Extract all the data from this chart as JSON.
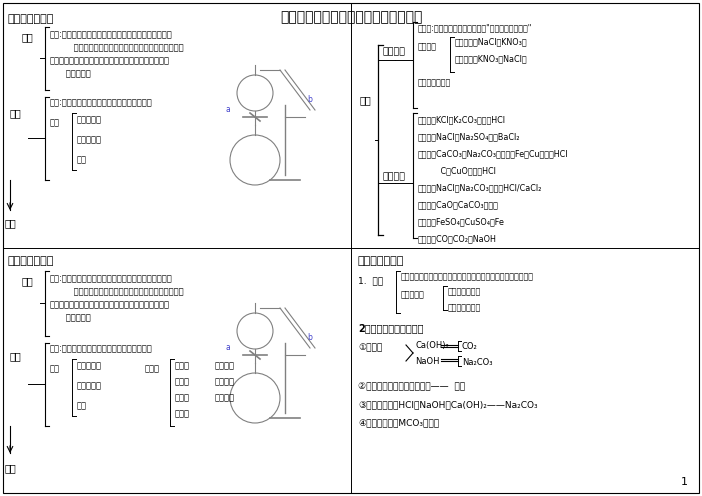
{
  "title": "中考化学实验物质的分离、检验、提纯",
  "bg_color": "#ffffff",
  "font_size_title": 10,
  "font_size_section": 8,
  "font_size_body": 6.5,
  "font_size_small": 6.0,
  "page_number": "1",
  "tl_content": {
    "section": "一、分离、提纯",
    "fen_li": "分离",
    "fen_li_lines": [
      "原理:通过适当的方法，把混合物中各组分的物质分开，",
      "         并且恢复到各物质的原来状态，分别得到纯净物。",
      "注：用化学方法分离时，选择试剂要考虑到能否将物质",
      "      恢复原样。"
    ],
    "ti_chun": "提纯",
    "ti_chun_yuan_li": "原理:通过适当的方法，出去混合物中的杂质。",
    "zhu_items": [
      "不增（新）",
      "不减（主）",
      "易分"
    ],
    "fang_fa": "方法"
  },
  "tr_content": {
    "fang_fa": "方法",
    "wu_li": "物理方法",
    "hua_xue": "化学方法",
    "wu_li_items": [
      "过滤法:不溶性固体与液体的分离\"一贴、二低、三靠\"",
      "结晶法：",
      "蒸发结晶：NaCl（KNO₃）",
      "降温结晶：KNO₃（NaCl）",
      "蒸馏、磁铁吸引"
    ],
    "hua_xue_items": [
      "气化法：KCl（K₂CO₃）加稀HCl",
      "沉淀法：NaCl（Na₂SO₄）加BaCl₂",
      "溶解法：CaCO₃（Na₂CO₃）加水、Fe（Cu）加稀HCl",
      "         C（CuO）加稀HCl",
      "特化法：NaCl（Na₂CO₃）加稀HCl/CaCl₂",
      "加热法：CaO（CaCO₃）高温",
      "置换法：FeSO₄（CuSO₄）Fe",
      "吸收法：CO（CO₂）NaOH"
    ]
  },
  "bl_content": {
    "section": "一、分离、提纯",
    "fen_li": "分离",
    "fen_li_lines": [
      "原理:通过适当的方法，把混合物中各组分的物质分开，",
      "         并且恢复到各物质的原来状态，分别得到纯净物。",
      "注：用化学方法分离时，选择试剂要考虑到能否将物质",
      "      恢复原样。"
    ],
    "ti_chun": "提纯",
    "ti_chun_yuan_li": "原理:通过适当的方法，出去混合物中的杂质。",
    "zhu_items": [
      "不增（新）",
      "不减（主）",
      "易分"
    ],
    "ping_jia": "评价：",
    "ping_jia_items": [
      "可行性",
      "安全性",
      "简约性",
      "环保性"
    ],
    "ping_jia_right": [
      "实验安全",
      "操作简单",
      "药品节约"
    ],
    "fang_fa": "方法"
  },
  "br_content": {
    "section": "二、物质的检验",
    "line1": "物理方法：颜色、气味、状态、溶解性、温度的变化（溶于水）",
    "method_label": "1.  方法",
    "chem_method1": "根据性质选试剂",
    "chem_method2": "根据现象下结论",
    "section2": "2．几种重要物质的检验",
    "item1": "①一对碱",
    "ca_oh": "Ca(OH)₂",
    "naoh": "NaOH",
    "co2": "CO₂",
    "na2co3": "Na₂CO₃",
    "item2": "②一酸、一碱、一盐（中性）——  石蕊",
    "item3": "③一酸、两碱：HCl、NaOH、Ca(OH)₂——Na₂CO₃",
    "item4": "④一碱、一盐（MCO₃）：酸"
  }
}
